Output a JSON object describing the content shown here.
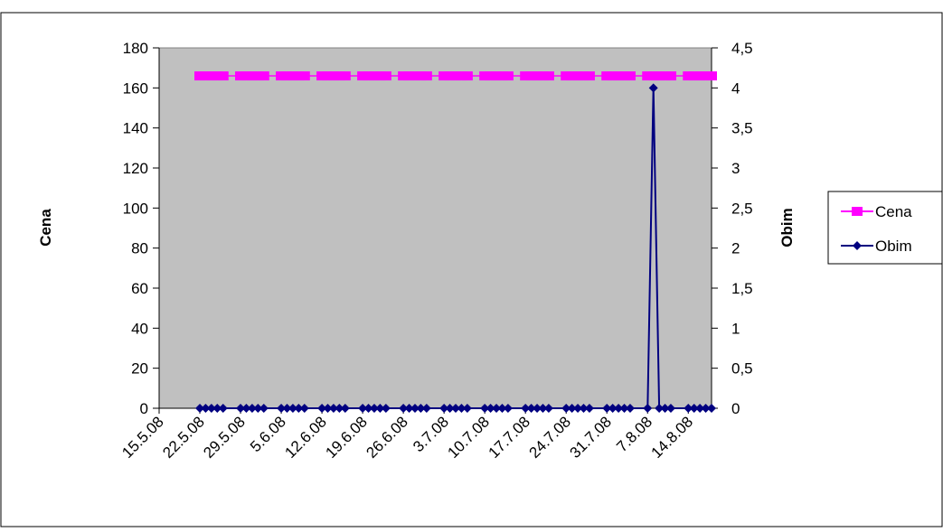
{
  "chart_data": {
    "type": "line",
    "x_tick_labels": [
      "15.5.08",
      "22.5.08",
      "29.5.08",
      "5.6.08",
      "12.6.08",
      "19.6.08",
      "26.6.08",
      "3.7.08",
      "10.7.08",
      "17.7.08",
      "24.7.08",
      "31.7.08",
      "7.8.08",
      "14.8.08"
    ],
    "x_range": [
      "2008-05-15",
      "2008-08-18"
    ],
    "dates": [
      "2008-05-22",
      "2008-05-23",
      "2008-05-24",
      "2008-05-25",
      "2008-05-26",
      "2008-05-29",
      "2008-05-30",
      "2008-05-31",
      "2008-06-01",
      "2008-06-02",
      "2008-06-05",
      "2008-06-06",
      "2008-06-07",
      "2008-06-08",
      "2008-06-09",
      "2008-06-12",
      "2008-06-13",
      "2008-06-14",
      "2008-06-15",
      "2008-06-16",
      "2008-06-19",
      "2008-06-20",
      "2008-06-21",
      "2008-06-22",
      "2008-06-23",
      "2008-06-26",
      "2008-06-27",
      "2008-06-28",
      "2008-06-29",
      "2008-06-30",
      "2008-07-03",
      "2008-07-04",
      "2008-07-05",
      "2008-07-06",
      "2008-07-07",
      "2008-07-10",
      "2008-07-11",
      "2008-07-12",
      "2008-07-13",
      "2008-07-14",
      "2008-07-17",
      "2008-07-18",
      "2008-07-19",
      "2008-07-20",
      "2008-07-21",
      "2008-07-24",
      "2008-07-25",
      "2008-07-26",
      "2008-07-27",
      "2008-07-28",
      "2008-07-31",
      "2008-08-01",
      "2008-08-02",
      "2008-08-03",
      "2008-08-04",
      "2008-08-07",
      "2008-08-08",
      "2008-08-09",
      "2008-08-10",
      "2008-08-11",
      "2008-08-14",
      "2008-08-15",
      "2008-08-16",
      "2008-08-17",
      "2008-08-18"
    ],
    "series": [
      {
        "name": "Cena",
        "axis": "left",
        "color": "#ff00ff",
        "marker": "square",
        "values": [
          166,
          166,
          166,
          166,
          166,
          166,
          166,
          166,
          166,
          166,
          166,
          166,
          166,
          166,
          166,
          166,
          166,
          166,
          166,
          166,
          166,
          166,
          166,
          166,
          166,
          166,
          166,
          166,
          166,
          166,
          166,
          166,
          166,
          166,
          166,
          166,
          166,
          166,
          166,
          166,
          166,
          166,
          166,
          166,
          166,
          166,
          166,
          166,
          166,
          166,
          166,
          166,
          166,
          166,
          166,
          166,
          166,
          166,
          166,
          166,
          166,
          166,
          166,
          166,
          166
        ]
      },
      {
        "name": "Obim",
        "axis": "right",
        "color": "#000080",
        "marker": "diamond",
        "values": [
          0,
          0,
          0,
          0,
          0,
          0,
          0,
          0,
          0,
          0,
          0,
          0,
          0,
          0,
          0,
          0,
          0,
          0,
          0,
          0,
          0,
          0,
          0,
          0,
          0,
          0,
          0,
          0,
          0,
          0,
          0,
          0,
          0,
          0,
          0,
          0,
          0,
          0,
          0,
          0,
          0,
          0,
          0,
          0,
          0,
          0,
          0,
          0,
          0,
          0,
          0,
          0,
          0,
          0,
          0,
          0,
          4,
          0,
          0,
          0,
          0,
          0,
          0,
          0,
          0
        ]
      }
    ],
    "y_left": {
      "label": "Cena",
      "min": 0,
      "max": 180,
      "ticks": [
        "0",
        "20",
        "40",
        "60",
        "80",
        "100",
        "120",
        "140",
        "160",
        "180"
      ]
    },
    "y_right": {
      "label": "Obim",
      "min": 0,
      "max": 4.5,
      "ticks": [
        "0",
        "0,5",
        "1",
        "1,5",
        "2",
        "2,5",
        "3",
        "3,5",
        "4",
        "4,5"
      ]
    },
    "plot_background": "#c0c0c0",
    "grid": false,
    "legend": {
      "position": "right",
      "items": [
        "Cena",
        "Obim"
      ]
    }
  }
}
